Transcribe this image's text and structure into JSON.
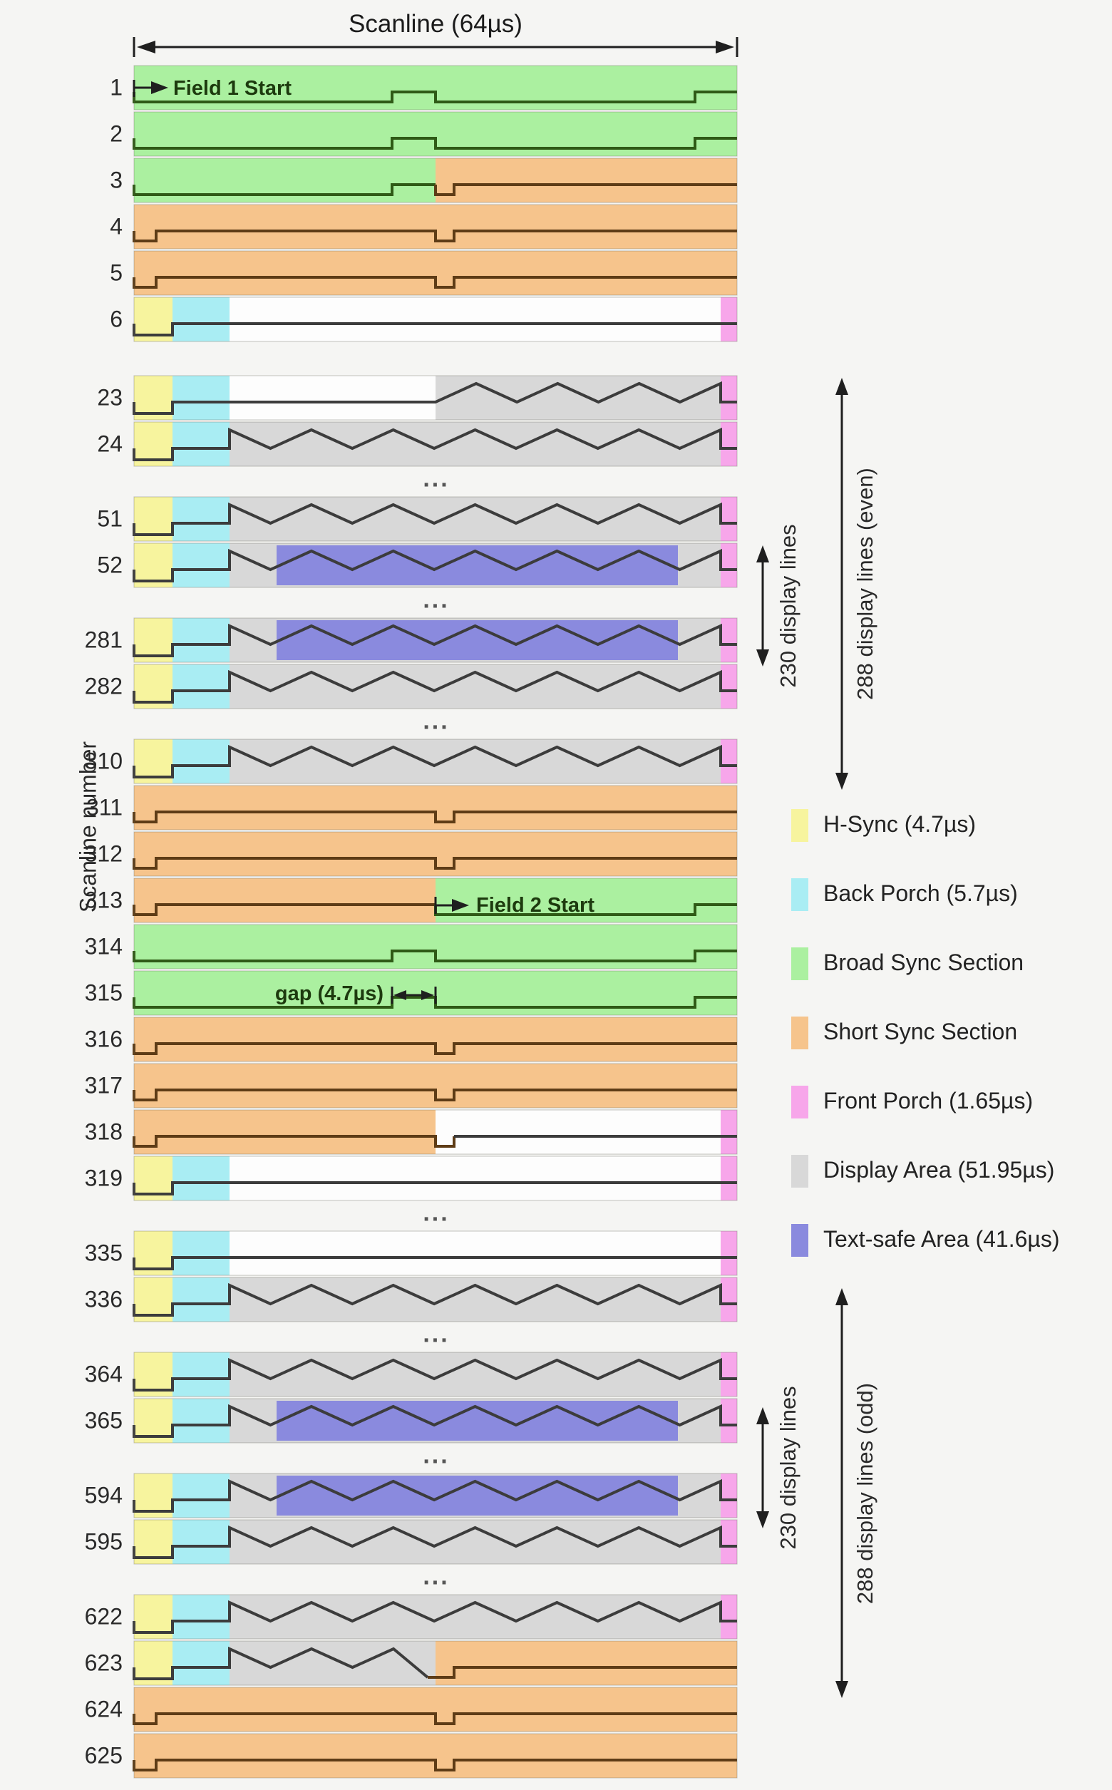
{
  "title": "Scanline (64µs)",
  "y_axis_label": "Scanline number",
  "field1_label": "Field 1 Start",
  "field2_label": "Field 2 Start",
  "gap_label": "gap (4.7µs)",
  "ellipsis": "...",
  "colors": {
    "hsync": "#f7f49e",
    "back_porch": "#a9edf3",
    "broad_sync": "#abf0a0",
    "short_sync": "#f6c48c",
    "front_porch": "#f7a6ea",
    "display_area": "#d8d8d8",
    "text_safe": "#8a8ade",
    "white_area": "#fdfdfd",
    "stroke_display": "#3c3c3c",
    "stroke_broad": "#2f5a16",
    "stroke_short": "#5e3c16",
    "arrow": "#1f1f1f"
  },
  "legend": {
    "items": [
      {
        "label": "H-Sync (4.7µs)",
        "color": "hsync"
      },
      {
        "label": "Back Porch (5.7µs)",
        "color": "back_porch"
      },
      {
        "label": "Broad Sync Section",
        "color": "broad_sync"
      },
      {
        "label": "Short Sync Section",
        "color": "short_sync"
      },
      {
        "label": "Front Porch (1.65µs)",
        "color": "front_porch"
      },
      {
        "label": "Display Area (51.95µs)",
        "color": "display_area"
      },
      {
        "label": "Text-safe Area (41.6µs)",
        "color": "text_safe"
      }
    ]
  },
  "side_arrows": [
    {
      "id": "even-short",
      "label": "230 display lines"
    },
    {
      "id": "even-long",
      "label": "288 display lines (even)"
    },
    {
      "id": "odd-short",
      "label": "230 display lines"
    },
    {
      "id": "odd-long",
      "label": "288 display lines (odd)"
    }
  ],
  "groups": [
    {
      "rows": [
        {
          "num": "1",
          "type": "broad"
        },
        {
          "num": "2",
          "type": "broad"
        },
        {
          "num": "3",
          "type": "broad_short"
        },
        {
          "num": "4",
          "type": "short"
        },
        {
          "num": "5",
          "type": "short"
        },
        {
          "num": "6",
          "type": "blank"
        }
      ],
      "ellipsis_after": false
    },
    {
      "rows": [
        {
          "num": "23",
          "type": "half_display"
        },
        {
          "num": "24",
          "type": "display"
        }
      ],
      "ellipsis_after": true
    },
    {
      "rows": [
        {
          "num": "51",
          "type": "display"
        },
        {
          "num": "52",
          "type": "display_safe"
        }
      ],
      "ellipsis_after": true
    },
    {
      "rows": [
        {
          "num": "281",
          "type": "display_safe"
        },
        {
          "num": "282",
          "type": "display"
        }
      ],
      "ellipsis_after": true
    },
    {
      "rows": [
        {
          "num": "310",
          "type": "display"
        },
        {
          "num": "311",
          "type": "short"
        },
        {
          "num": "312",
          "type": "short"
        },
        {
          "num": "313",
          "type": "short_broad"
        },
        {
          "num": "314",
          "type": "broad"
        },
        {
          "num": "315",
          "type": "broad"
        },
        {
          "num": "316",
          "type": "short"
        },
        {
          "num": "317",
          "type": "short"
        },
        {
          "num": "318",
          "type": "short_blank"
        },
        {
          "num": "319",
          "type": "blank"
        }
      ],
      "ellipsis_after": true
    },
    {
      "rows": [
        {
          "num": "335",
          "type": "blank"
        },
        {
          "num": "336",
          "type": "display"
        }
      ],
      "ellipsis_after": true
    },
    {
      "rows": [
        {
          "num": "364",
          "type": "display"
        },
        {
          "num": "365",
          "type": "display_safe"
        }
      ],
      "ellipsis_after": true
    },
    {
      "rows": [
        {
          "num": "594",
          "type": "display_safe"
        },
        {
          "num": "595",
          "type": "display"
        }
      ],
      "ellipsis_after": true
    },
    {
      "rows": [
        {
          "num": "622",
          "type": "display"
        },
        {
          "num": "623",
          "type": "display_short"
        },
        {
          "num": "624",
          "type": "short"
        },
        {
          "num": "625",
          "type": "short"
        }
      ],
      "ellipsis_after": false
    }
  ]
}
